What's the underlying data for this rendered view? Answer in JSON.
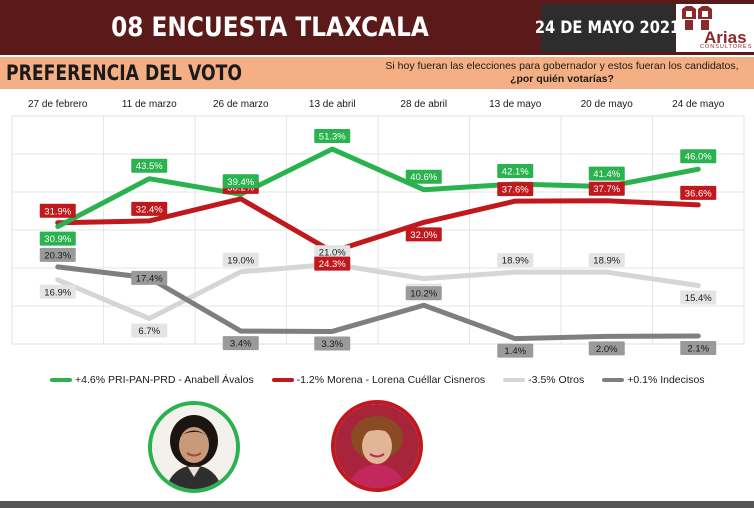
{
  "header": {
    "title": "08 ENCUESTA TLAXCALA",
    "date": "24 DE MAYO 2021",
    "logo_word": "Arias",
    "logo_sub": "CONSULTORES"
  },
  "subheader": {
    "title": "PREFERENCIA DEL VOTO",
    "question_line1": "Si hoy fueran las elecciones para gobernador y estos fueran los candidatos,",
    "question_line2": "¿por quién votarías?"
  },
  "legend": [
    {
      "label": "+4.6% PRI-PAN-PRD - Anabell Ávalos",
      "color": "#2ab24f"
    },
    {
      "label": "-1.2% Morena - Lorena Cuéllar Cisneros",
      "color": "#c0181d"
    },
    {
      "label": "-3.5% Otros",
      "color": "#d6d6d6"
    },
    {
      "label": "+0.1% Indecisos",
      "color": "#7f7f7f"
    }
  ],
  "portraits": [
    {
      "name": "anabell-avalos",
      "color": "#2ab24f"
    },
    {
      "name": "lorena-cuellar",
      "color": "#c0181d"
    }
  ],
  "chart_data": {
    "type": "line",
    "categories": [
      "27 de febrero",
      "11 de marzo",
      "26 de marzo",
      "13 de abril",
      "28 de abril",
      "13 de mayo",
      "20 de mayo",
      "24 de mayo"
    ],
    "ylim": [
      0,
      60
    ],
    "grid": true,
    "legend_position": "bottom",
    "series": [
      {
        "name": "PRI-PAN-PRD - Anabell Ávalos",
        "color": "#2ab24f",
        "values": [
          30.9,
          43.5,
          39.4,
          51.3,
          40.6,
          42.1,
          41.4,
          46.0
        ]
      },
      {
        "name": "Morena - Lorena Cuéllar Cisneros",
        "color": "#c0181d",
        "values": [
          31.9,
          32.4,
          38.2,
          24.3,
          32.0,
          37.6,
          37.7,
          36.6
        ]
      },
      {
        "name": "Otros",
        "color": "#d6d6d6",
        "values": [
          16.9,
          6.7,
          19.0,
          21.0,
          17.2,
          18.9,
          18.9,
          15.4
        ]
      },
      {
        "name": "Indecisos",
        "color": "#7f7f7f",
        "values": [
          20.3,
          17.4,
          3.4,
          3.3,
          10.2,
          1.4,
          2.0,
          2.1
        ]
      }
    ]
  }
}
